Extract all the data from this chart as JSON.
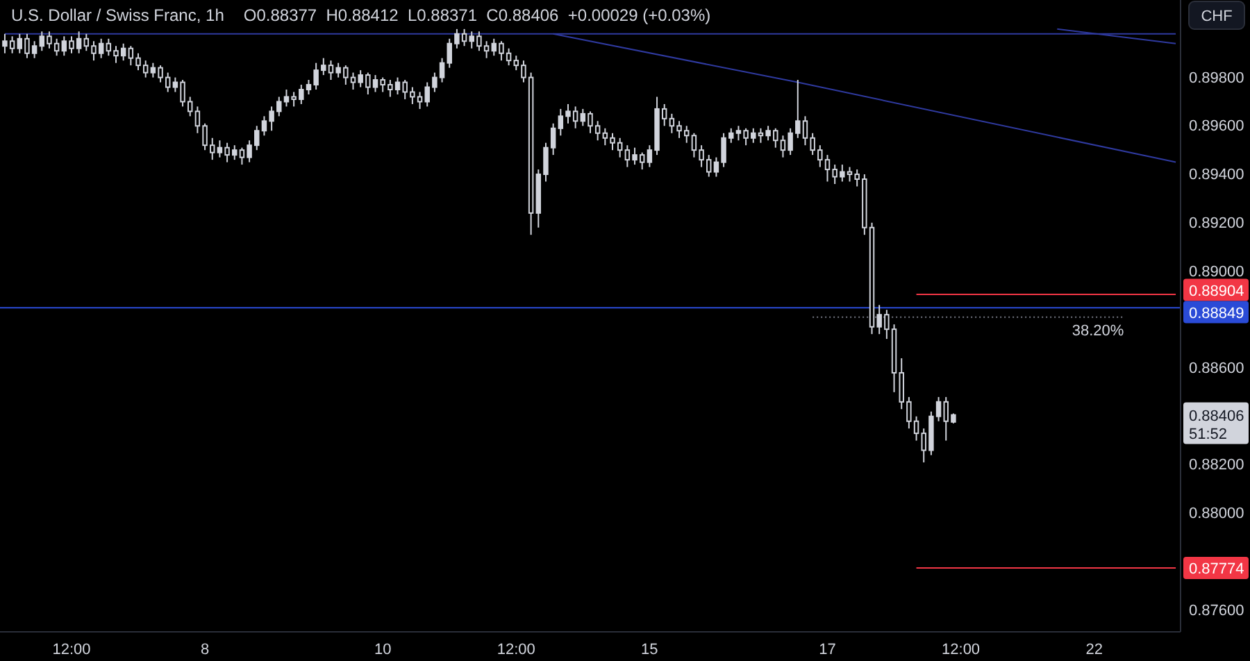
{
  "chart_data": {
    "type": "candlestick",
    "title": "U.S. Dollar / Swiss Franc, 1h",
    "subtitle": "O0.88377  H0.88412  L0.88371  C0.88406  +0.00029 (+0.03%)",
    "color": "#d1d4dc",
    "categories": [
      null,
      null,
      null,
      null,
      null,
      null,
      null,
      null,
      null,
      "12:00",
      null,
      null,
      null,
      null,
      null,
      null,
      null,
      null,
      null,
      null,
      null,
      null,
      null,
      null,
      null,
      null,
      null,
      "8",
      null,
      null,
      null,
      null,
      null,
      null,
      null,
      null,
      null,
      null,
      null,
      null,
      null,
      null,
      null,
      null,
      null,
      null,
      null,
      null,
      null,
      null,
      null,
      "10",
      null,
      null,
      null,
      null,
      null,
      null,
      null,
      null,
      null,
      null,
      null,
      null,
      null,
      null,
      null,
      null,
      null,
      "12:00",
      null,
      null,
      null,
      null,
      null,
      null,
      null,
      null,
      null,
      null,
      null,
      null,
      null,
      null,
      null,
      null,
      null,
      "15",
      null,
      null,
      null,
      null,
      null,
      null,
      null,
      null,
      null,
      null,
      null,
      null,
      null,
      null,
      null,
      null,
      null,
      null,
      null,
      null,
      null,
      null,
      null,
      "17",
      null,
      null,
      null,
      null,
      null,
      null,
      null,
      null,
      null,
      null,
      null,
      null,
      null,
      null,
      null,
      null,
      null,
      "12:00",
      null,
      null,
      null,
      null,
      null,
      null,
      null,
      null,
      null,
      null,
      null,
      null,
      null,
      null,
      null,
      null,
      null,
      "22",
      null,
      null,
      null,
      null,
      null,
      null,
      null,
      null,
      null,
      null,
      null
    ],
    "ohlc": [
      [
        0.8993,
        0.8998,
        0.899,
        0.8995
      ],
      [
        0.8995,
        0.8997,
        0.899,
        0.8992
      ],
      [
        0.8992,
        0.8998,
        0.899,
        0.8996
      ],
      [
        0.8996,
        0.8998,
        0.8988,
        0.899
      ],
      [
        0.899,
        0.8995,
        0.8988,
        0.8993
      ],
      [
        0.8993,
        0.8999,
        0.8991,
        0.8997
      ],
      [
        0.8997,
        0.8999,
        0.8992,
        0.8994
      ],
      [
        0.8994,
        0.8996,
        0.8989,
        0.8991
      ],
      [
        0.8991,
        0.8997,
        0.8989,
        0.8995
      ],
      [
        0.8995,
        0.8997,
        0.899,
        0.8992
      ],
      [
        0.8992,
        0.8999,
        0.899,
        0.8996
      ],
      [
        0.8996,
        0.8998,
        0.8991,
        0.8993
      ],
      [
        0.8993,
        0.8995,
        0.8987,
        0.899
      ],
      [
        0.899,
        0.8996,
        0.8988,
        0.8994
      ],
      [
        0.8994,
        0.8996,
        0.8989,
        0.8991
      ],
      [
        0.8991,
        0.8993,
        0.8986,
        0.8989
      ],
      [
        0.8989,
        0.8994,
        0.8987,
        0.8992
      ],
      [
        0.8992,
        0.8993,
        0.8985,
        0.8988
      ],
      [
        0.8988,
        0.899,
        0.8983,
        0.8985
      ],
      [
        0.8985,
        0.8987,
        0.898,
        0.8982
      ],
      [
        0.8982,
        0.8986,
        0.898,
        0.8984
      ],
      [
        0.8984,
        0.8985,
        0.8978,
        0.898
      ],
      [
        0.898,
        0.8982,
        0.8974,
        0.8976
      ],
      [
        0.8976,
        0.898,
        0.8974,
        0.8978
      ],
      [
        0.8978,
        0.8979,
        0.8968,
        0.897
      ],
      [
        0.897,
        0.8972,
        0.8964,
        0.8966
      ],
      [
        0.8966,
        0.8968,
        0.8957,
        0.896
      ],
      [
        0.896,
        0.8961,
        0.895,
        0.8952
      ],
      [
        0.8952,
        0.8955,
        0.8946,
        0.8949
      ],
      [
        0.8949,
        0.8954,
        0.8947,
        0.8951
      ],
      [
        0.8951,
        0.8953,
        0.8945,
        0.8948
      ],
      [
        0.8948,
        0.8952,
        0.8946,
        0.895
      ],
      [
        0.895,
        0.8951,
        0.8944,
        0.8947
      ],
      [
        0.8947,
        0.8954,
        0.8945,
        0.8952
      ],
      [
        0.8952,
        0.896,
        0.895,
        0.8958
      ],
      [
        0.8958,
        0.8964,
        0.8956,
        0.8962
      ],
      [
        0.8962,
        0.8968,
        0.8958,
        0.8966
      ],
      [
        0.8966,
        0.8972,
        0.8964,
        0.897
      ],
      [
        0.897,
        0.8975,
        0.8968,
        0.8972
      ],
      [
        0.8972,
        0.8974,
        0.8968,
        0.8971
      ],
      [
        0.8971,
        0.8977,
        0.8969,
        0.8975
      ],
      [
        0.8975,
        0.8979,
        0.8973,
        0.8977
      ],
      [
        0.8977,
        0.8986,
        0.8975,
        0.8983
      ],
      [
        0.8983,
        0.8988,
        0.8981,
        0.8985
      ],
      [
        0.8985,
        0.8987,
        0.8979,
        0.8982
      ],
      [
        0.8982,
        0.8986,
        0.898,
        0.8984
      ],
      [
        0.8984,
        0.8985,
        0.8977,
        0.898
      ],
      [
        0.898,
        0.8982,
        0.8975,
        0.8978
      ],
      [
        0.8978,
        0.8983,
        0.8976,
        0.8981
      ],
      [
        0.8981,
        0.8982,
        0.8973,
        0.8976
      ],
      [
        0.8976,
        0.8981,
        0.8974,
        0.8979
      ],
      [
        0.8979,
        0.898,
        0.8974,
        0.8977
      ],
      [
        0.8977,
        0.8979,
        0.8972,
        0.8975
      ],
      [
        0.8975,
        0.898,
        0.8973,
        0.8978
      ],
      [
        0.8978,
        0.8979,
        0.8971,
        0.8974
      ],
      [
        0.8974,
        0.8976,
        0.8969,
        0.8972
      ],
      [
        0.8972,
        0.8974,
        0.8967,
        0.897
      ],
      [
        0.897,
        0.8978,
        0.8968,
        0.8976
      ],
      [
        0.8976,
        0.8982,
        0.8974,
        0.898
      ],
      [
        0.898,
        0.8988,
        0.8978,
        0.8986
      ],
      [
        0.8986,
        0.8996,
        0.8984,
        0.8994
      ],
      [
        0.8994,
        0.9,
        0.8992,
        0.8998
      ],
      [
        0.8998,
        0.9,
        0.8993,
        0.8995
      ],
      [
        0.8995,
        0.8999,
        0.8992,
        0.8997
      ],
      [
        0.8997,
        0.8999,
        0.8991,
        0.8993
      ],
      [
        0.8993,
        0.8995,
        0.8988,
        0.8991
      ],
      [
        0.8991,
        0.8996,
        0.8989,
        0.8994
      ],
      [
        0.8994,
        0.8995,
        0.8987,
        0.899
      ],
      [
        0.899,
        0.8992,
        0.8985,
        0.8987
      ],
      [
        0.8987,
        0.8989,
        0.8983,
        0.8985
      ],
      [
        0.8985,
        0.8987,
        0.8978,
        0.898
      ],
      [
        0.898,
        0.8982,
        0.8915,
        0.8924
      ],
      [
        0.8924,
        0.8942,
        0.8918,
        0.894
      ],
      [
        0.894,
        0.8953,
        0.8937,
        0.8951
      ],
      [
        0.8951,
        0.8961,
        0.8948,
        0.8959
      ],
      [
        0.8959,
        0.8967,
        0.8956,
        0.8964
      ],
      [
        0.8964,
        0.8969,
        0.8961,
        0.8966
      ],
      [
        0.8966,
        0.8968,
        0.8959,
        0.8962
      ],
      [
        0.8962,
        0.8967,
        0.896,
        0.8965
      ],
      [
        0.8965,
        0.8966,
        0.8957,
        0.896
      ],
      [
        0.896,
        0.8962,
        0.8954,
        0.8957
      ],
      [
        0.8957,
        0.8959,
        0.8952,
        0.8955
      ],
      [
        0.8955,
        0.8957,
        0.895,
        0.8953
      ],
      [
        0.8953,
        0.8955,
        0.8947,
        0.895
      ],
      [
        0.895,
        0.8952,
        0.8943,
        0.8946
      ],
      [
        0.8946,
        0.8951,
        0.8944,
        0.8948
      ],
      [
        0.8948,
        0.8949,
        0.8942,
        0.8945
      ],
      [
        0.8945,
        0.8952,
        0.8943,
        0.895
      ],
      [
        0.895,
        0.8972,
        0.8948,
        0.8967
      ],
      [
        0.8967,
        0.8969,
        0.896,
        0.8963
      ],
      [
        0.8963,
        0.8965,
        0.8957,
        0.896
      ],
      [
        0.896,
        0.8962,
        0.8955,
        0.8958
      ],
      [
        0.8958,
        0.896,
        0.8953,
        0.8956
      ],
      [
        0.8956,
        0.8957,
        0.8947,
        0.895
      ],
      [
        0.895,
        0.8952,
        0.8943,
        0.8946
      ],
      [
        0.8946,
        0.8948,
        0.8939,
        0.8941
      ],
      [
        0.8941,
        0.8947,
        0.8939,
        0.8945
      ],
      [
        0.8945,
        0.8957,
        0.8943,
        0.8955
      ],
      [
        0.8955,
        0.8959,
        0.8953,
        0.8957
      ],
      [
        0.8957,
        0.896,
        0.8954,
        0.8958
      ],
      [
        0.8958,
        0.8959,
        0.8952,
        0.8955
      ],
      [
        0.8955,
        0.8959,
        0.8953,
        0.8957
      ],
      [
        0.8957,
        0.8959,
        0.8953,
        0.8956
      ],
      [
        0.8956,
        0.896,
        0.8954,
        0.8958
      ],
      [
        0.8958,
        0.8959,
        0.8951,
        0.8954
      ],
      [
        0.8954,
        0.8956,
        0.8947,
        0.895
      ],
      [
        0.895,
        0.8959,
        0.8948,
        0.8957
      ],
      [
        0.8957,
        0.8979,
        0.8955,
        0.8962
      ],
      [
        0.8962,
        0.8964,
        0.8952,
        0.8955
      ],
      [
        0.8955,
        0.8957,
        0.8948,
        0.895
      ],
      [
        0.895,
        0.8952,
        0.8943,
        0.8946
      ],
      [
        0.8946,
        0.8948,
        0.8937,
        0.8942
      ],
      [
        0.8942,
        0.8944,
        0.8936,
        0.8939
      ],
      [
        0.8939,
        0.8944,
        0.8937,
        0.8941
      ],
      [
        0.8941,
        0.8943,
        0.8937,
        0.894
      ],
      [
        0.894,
        0.8942,
        0.8935,
        0.8938
      ],
      [
        0.8938,
        0.894,
        0.8915,
        0.8918
      ],
      [
        0.8918,
        0.892,
        0.8874,
        0.8877
      ],
      [
        0.8877,
        0.8886,
        0.8874,
        0.8882
      ],
      [
        0.8882,
        0.8884,
        0.8872,
        0.8876
      ],
      [
        0.8876,
        0.8878,
        0.885,
        0.8858
      ],
      [
        0.8858,
        0.8864,
        0.8843,
        0.8846
      ],
      [
        0.8846,
        0.8848,
        0.8835,
        0.8838
      ],
      [
        0.8838,
        0.884,
        0.883,
        0.8833
      ],
      [
        0.8833,
        0.8835,
        0.8821,
        0.8826
      ],
      [
        0.8826,
        0.8842,
        0.8824,
        0.884
      ],
      [
        0.884,
        0.8848,
        0.8838,
        0.8846
      ],
      [
        0.8846,
        0.8848,
        0.883,
        0.8838
      ],
      [
        0.88377,
        0.88412,
        0.88371,
        0.88406
      ],
      null,
      null,
      null,
      null,
      null,
      null,
      null,
      null,
      null,
      null,
      null,
      null,
      null,
      null,
      null,
      null,
      null,
      null,
      null,
      null,
      null,
      null,
      null,
      null,
      null,
      null,
      null,
      null,
      null,
      null
    ],
    "series": [
      {
        "type": "line",
        "color": "#2f3aa0",
        "values": [
          0.8998,
          null,
          null,
          null,
          null,
          null,
          null,
          null,
          null,
          null,
          null,
          null,
          null,
          null,
          null,
          null,
          null,
          null,
          null,
          null,
          null,
          null,
          null,
          null,
          null,
          null,
          null,
          null,
          null,
          null,
          null,
          null,
          null,
          null,
          null,
          null,
          null,
          null,
          null,
          null,
          null,
          null,
          null,
          null,
          null,
          null,
          null,
          null,
          null,
          null,
          null,
          null,
          null,
          null,
          null,
          null,
          null,
          null,
          null,
          null,
          null,
          null,
          null,
          null,
          null,
          null,
          null,
          null,
          null,
          null,
          null,
          null,
          null,
          null,
          null,
          null,
          null,
          null,
          null,
          null,
          null,
          null,
          null,
          null,
          null,
          null,
          null,
          null,
          null,
          null,
          null,
          null,
          null,
          null,
          null,
          null,
          null,
          null,
          null,
          null,
          null,
          null,
          null,
          null,
          null,
          null,
          null,
          null,
          null,
          null,
          null,
          null,
          null,
          null,
          null,
          null,
          null,
          null,
          null,
          null,
          null,
          null,
          null,
          null,
          null,
          null,
          null,
          null,
          null,
          null,
          null,
          null,
          null,
          null,
          null,
          null,
          null,
          null,
          null,
          null,
          null,
          null,
          null,
          null,
          null,
          null,
          null,
          null,
          null,
          null,
          null,
          null,
          null,
          null,
          null,
          null,
          null,
          null,
          0.8998
        ]
      },
      {
        "type": "line",
        "color": "#2f3aa0",
        "values": [
          null,
          null,
          null,
          null,
          null,
          null,
          null,
          null,
          null,
          null,
          null,
          null,
          null,
          null,
          null,
          null,
          null,
          null,
          null,
          null,
          null,
          null,
          null,
          null,
          null,
          null,
          null,
          null,
          null,
          null,
          null,
          null,
          null,
          null,
          null,
          null,
          null,
          null,
          null,
          null,
          null,
          null,
          null,
          null,
          null,
          null,
          null,
          null,
          null,
          null,
          null,
          null,
          null,
          null,
          null,
          null,
          null,
          null,
          null,
          null,
          null,
          null,
          null,
          null,
          null,
          null,
          null,
          null,
          null,
          null,
          null,
          null,
          null,
          null,
          0.8998,
          null,
          null,
          null,
          null,
          null,
          null,
          null,
          null,
          null,
          null,
          null,
          null,
          null,
          null,
          null,
          null,
          null,
          null,
          null,
          null,
          null,
          null,
          null,
          null,
          null,
          null,
          null,
          null,
          null,
          null,
          null,
          null,
          0.8978,
          null,
          null,
          null,
          null,
          null,
          null,
          null,
          null,
          null,
          null,
          null,
          null,
          null,
          null,
          null,
          null,
          null,
          null,
          null,
          null,
          null,
          null,
          null,
          null,
          null,
          null,
          null,
          null,
          null,
          null,
          null,
          null,
          null,
          null,
          null,
          null,
          null,
          null,
          null,
          null,
          null,
          null,
          null,
          null,
          null,
          null,
          null,
          null,
          null,
          null,
          0.8945
        ]
      },
      {
        "type": "line",
        "color": "#2f3aa0",
        "values": [
          null,
          null,
          null,
          null,
          null,
          null,
          null,
          null,
          null,
          null,
          null,
          null,
          null,
          null,
          null,
          null,
          null,
          null,
          null,
          null,
          null,
          null,
          null,
          null,
          null,
          null,
          null,
          null,
          null,
          null,
          null,
          null,
          null,
          null,
          null,
          null,
          null,
          null,
          null,
          null,
          null,
          null,
          null,
          null,
          null,
          null,
          null,
          null,
          null,
          null,
          null,
          null,
          null,
          null,
          null,
          null,
          null,
          null,
          null,
          null,
          null,
          null,
          null,
          null,
          null,
          null,
          null,
          null,
          null,
          null,
          null,
          null,
          null,
          null,
          null,
          null,
          null,
          null,
          null,
          null,
          null,
          null,
          null,
          null,
          null,
          null,
          null,
          null,
          null,
          null,
          null,
          null,
          null,
          null,
          null,
          null,
          null,
          null,
          null,
          null,
          null,
          null,
          null,
          null,
          null,
          null,
          null,
          null,
          null,
          null,
          null,
          null,
          null,
          null,
          null,
          null,
          null,
          null,
          null,
          null,
          null,
          null,
          null,
          null,
          null,
          null,
          null,
          null,
          null,
          null,
          null,
          null,
          null,
          null,
          null,
          null,
          null,
          null,
          null,
          null,
          null,
          null,
          0.9,
          null,
          null,
          null,
          null,
          null,
          null,
          null,
          null,
          null,
          null,
          null,
          null,
          null,
          null,
          null,
          0.8994
        ]
      },
      {
        "type": "line",
        "name": "38.20%",
        "color": "#787b86",
        "line_style": "dotted",
        "values": [
          null,
          null,
          null,
          null,
          null,
          null,
          null,
          null,
          null,
          null,
          null,
          null,
          null,
          null,
          null,
          null,
          null,
          null,
          null,
          null,
          null,
          null,
          null,
          null,
          null,
          null,
          null,
          null,
          null,
          null,
          null,
          null,
          null,
          null,
          null,
          null,
          null,
          null,
          null,
          null,
          null,
          null,
          null,
          null,
          null,
          null,
          null,
          null,
          null,
          null,
          null,
          null,
          null,
          null,
          null,
          null,
          null,
          null,
          null,
          null,
          null,
          null,
          null,
          null,
          null,
          null,
          null,
          null,
          null,
          null,
          null,
          null,
          null,
          null,
          null,
          null,
          null,
          null,
          null,
          null,
          null,
          null,
          null,
          null,
          null,
          null,
          null,
          null,
          null,
          null,
          null,
          null,
          null,
          null,
          null,
          null,
          null,
          null,
          null,
          null,
          null,
          null,
          null,
          null,
          null,
          null,
          null,
          null,
          null,
          0.8881,
          0.8881,
          0.8881,
          0.8881,
          0.8881,
          0.8881,
          0.8881,
          0.8881,
          0.8881,
          0.8881,
          0.8881,
          0.8881,
          0.8881,
          0.8881,
          0.8881,
          0.8881,
          0.8881,
          0.8881,
          0.8881,
          0.8881,
          0.8881,
          0.8881,
          0.8881,
          0.8881,
          0.8881,
          0.8881,
          0.8881,
          0.8881,
          0.8881,
          0.8881,
          0.8881,
          0.8881,
          0.8881,
          0.8881,
          0.8881,
          0.8881,
          0.8881,
          0.8881,
          0.8881,
          0.8881,
          0.8881,
          0.8881,
          0.8881,
          null,
          null,
          null,
          null,
          null,
          null,
          null
        ]
      },
      {
        "type": "line",
        "name": "0.88904",
        "color": "#f23645",
        "values": [
          null,
          null,
          null,
          null,
          null,
          null,
          null,
          null,
          null,
          null,
          null,
          null,
          null,
          null,
          null,
          null,
          null,
          null,
          null,
          null,
          null,
          null,
          null,
          null,
          null,
          null,
          null,
          null,
          null,
          null,
          null,
          null,
          null,
          null,
          null,
          null,
          null,
          null,
          null,
          null,
          null,
          null,
          null,
          null,
          null,
          null,
          null,
          null,
          null,
          null,
          null,
          null,
          null,
          null,
          null,
          null,
          null,
          null,
          null,
          null,
          null,
          null,
          null,
          null,
          null,
          null,
          null,
          null,
          null,
          null,
          null,
          null,
          null,
          null,
          null,
          null,
          null,
          null,
          null,
          null,
          null,
          null,
          null,
          null,
          null,
          null,
          null,
          null,
          null,
          null,
          null,
          null,
          null,
          null,
          null,
          null,
          null,
          null,
          null,
          null,
          null,
          null,
          null,
          null,
          null,
          null,
          null,
          null,
          null,
          null,
          null,
          null,
          null,
          null,
          null,
          null,
          null,
          null,
          null,
          null,
          null,
          null,
          null,
          0.88904,
          0.88904,
          0.88904,
          0.88904,
          0.88904,
          0.88904,
          0.88904,
          0.88904,
          0.88904,
          0.88904,
          0.88904,
          0.88904,
          0.88904,
          0.88904,
          0.88904,
          0.88904,
          0.88904,
          0.88904,
          0.88904,
          0.88904,
          0.88904,
          0.88904,
          0.88904,
          0.88904,
          0.88904,
          0.88904,
          0.88904,
          0.88904,
          0.88904,
          0.88904,
          0.88904,
          0.88904,
          0.88904,
          0.88904,
          0.88904,
          0.88904
        ]
      },
      {
        "type": "line",
        "name": "0.87774",
        "color": "#f23645",
        "values": [
          null,
          null,
          null,
          null,
          null,
          null,
          null,
          null,
          null,
          null,
          null,
          null,
          null,
          null,
          null,
          null,
          null,
          null,
          null,
          null,
          null,
          null,
          null,
          null,
          null,
          null,
          null,
          null,
          null,
          null,
          null,
          null,
          null,
          null,
          null,
          null,
          null,
          null,
          null,
          null,
          null,
          null,
          null,
          null,
          null,
          null,
          null,
          null,
          null,
          null,
          null,
          null,
          null,
          null,
          null,
          null,
          null,
          null,
          null,
          null,
          null,
          null,
          null,
          null,
          null,
          null,
          null,
          null,
          null,
          null,
          null,
          null,
          null,
          null,
          null,
          null,
          null,
          null,
          null,
          null,
          null,
          null,
          null,
          null,
          null,
          null,
          null,
          null,
          null,
          null,
          null,
          null,
          null,
          null,
          null,
          null,
          null,
          null,
          null,
          null,
          null,
          null,
          null,
          null,
          null,
          null,
          null,
          null,
          null,
          null,
          null,
          null,
          null,
          null,
          null,
          null,
          null,
          null,
          null,
          null,
          null,
          null,
          null,
          0.87774,
          0.87774,
          0.87774,
          0.87774,
          0.87774,
          0.87774,
          0.87774,
          0.87774,
          0.87774,
          0.87774,
          0.87774,
          0.87774,
          0.87774,
          0.87774,
          0.87774,
          0.87774,
          0.87774,
          0.87774,
          0.87774,
          0.87774,
          0.87774,
          0.87774,
          0.87774,
          0.87774,
          0.87774,
          0.87774,
          0.87774,
          0.87774,
          0.87774,
          0.87774,
          0.87774,
          0.87774,
          0.87774,
          0.87774,
          0.87774,
          0.87774
        ]
      }
    ],
    "ref_lines": [
      {
        "axis": "y",
        "value": 0.88849,
        "label": "0.88849",
        "color": "#2a4bd7"
      }
    ],
    "annotations": [
      "0.88406",
      "51:52",
      "CHF"
    ],
    "ylim": [
      0.8751,
      0.9012
    ],
    "yticks": [
      {
        "value": 0.876,
        "label": "0.87600"
      },
      {
        "value": 0.88,
        "label": "0.88000"
      },
      {
        "value": 0.882,
        "label": "0.88200"
      },
      {
        "value": 0.886,
        "label": "0.88600"
      },
      {
        "value": 0.89,
        "label": "0.89000"
      },
      {
        "value": 0.892,
        "label": "0.89200"
      },
      {
        "value": 0.894,
        "label": "0.89400"
      },
      {
        "value": 0.896,
        "label": "0.89600"
      },
      {
        "value": 0.898,
        "label": "0.89800"
      }
    ]
  }
}
